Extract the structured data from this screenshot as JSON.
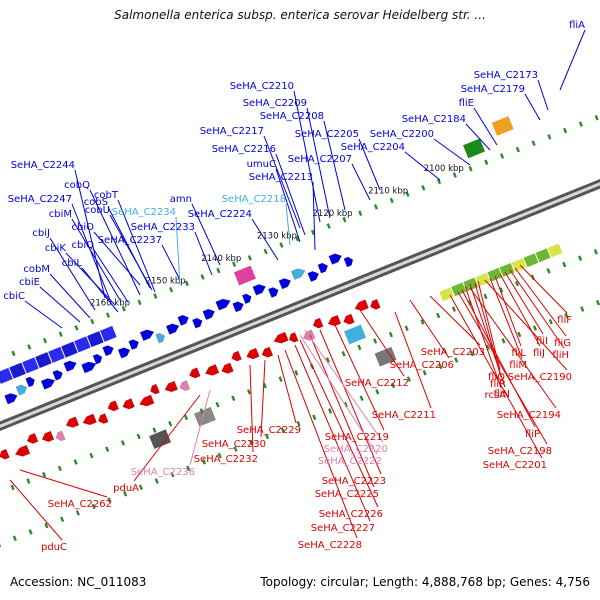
{
  "title": "Salmonella enterica subsp. enterica serovar Heidelberg str. ...",
  "footer": {
    "accession": "Accession: NC_011083",
    "summary": "Topology: circular; Length: 4,888,768 bp; Genes: 4,756"
  },
  "colors": {
    "forward": "#0000dd",
    "reverse": "#dd0000",
    "cyan": "#40b0e0",
    "pink": "#e080b0",
    "axis": "#707070",
    "tick": "#2a8a2a"
  },
  "kbp_labels": [
    "2100 kbp",
    "2110 kbp",
    "2120 kbp",
    "2130 kbp",
    "2140 kbp",
    "2150 kbp",
    "2160 kbp"
  ],
  "genes_blue": [
    "fliA",
    "SeHA_C2173",
    "SeHA_C2179",
    "fliE",
    "SeHA_C2184",
    "SeHA_C2200",
    "SeHA_C2204",
    "SeHA_C2205",
    "SeHA_C2207",
    "SeHA_C2208",
    "SeHA_C2209",
    "SeHA_C2210",
    "SeHA_C2217",
    "SeHA_C2216",
    "umuC",
    "SeHA_C2213",
    "SeHA_C2224",
    "amn",
    "SeHA_C2233",
    "SeHA_C2237",
    "cbiO",
    "cobS",
    "cobU",
    "cobT",
    "cobQ",
    "cbiM",
    "cbiQ",
    "cbiK",
    "cbiJ",
    "cbiL",
    "cobM",
    "cbiE",
    "cbiC",
    "SeHA_C2247",
    "SeHA_C2244"
  ],
  "genes_cyan": [
    "SeHA_C2234",
    "SeHA_C2218"
  ],
  "genes_red": [
    "fliF",
    "fliG",
    "fliH",
    "fliI",
    "fliJ",
    "fliL",
    "fliM",
    "fliN",
    "fliO",
    "fliR",
    "rcsA",
    "SeHA_C2190",
    "SeHA_C2194",
    "fliP",
    "SeHA_C2198",
    "SeHA_C2201",
    "SeHA_C2203",
    "SeHA_C2206",
    "SeHA_C2212",
    "SeHA_C2211",
    "SeHA_C2219",
    "SeHA_C2223",
    "SeHA_C2225",
    "SeHA_C2226",
    "SeHA_C2227",
    "SeHA_C2228",
    "SeHA_C2229",
    "SeHA_C2230",
    "SeHA_C2232",
    "pduA",
    "SeHA_C2262",
    "pduC"
  ],
  "genes_pink": [
    "SeHA_C2220",
    "SeHA_C2222",
    "SeHA_C2236"
  ]
}
